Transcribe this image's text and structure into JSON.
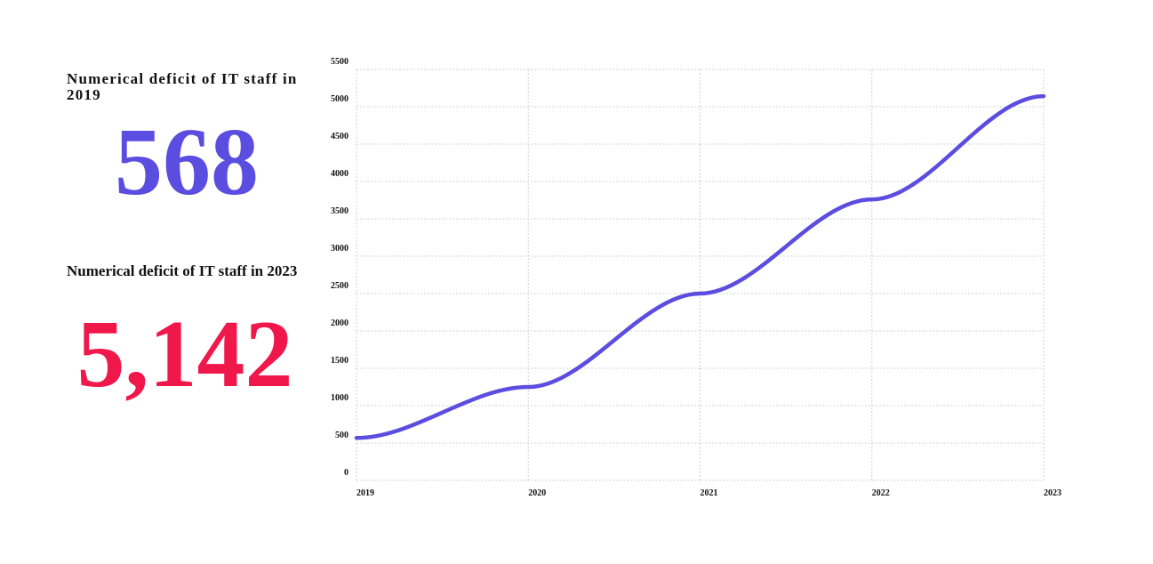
{
  "stats": [
    {
      "label": "Numerical deficit of IT staff in 2019",
      "value": "568"
    },
    {
      "label": "Numerical deficit of IT staff in 2023",
      "value": "5,142"
    }
  ],
  "chart_data": {
    "type": "line",
    "x": [
      2019,
      2020,
      2021,
      2022,
      2023
    ],
    "series": [
      {
        "color": "#5b4de0",
        "values": [
          568,
          1250,
          2500,
          3760,
          5142
        ]
      }
    ],
    "xlim": [
      2019,
      2023
    ],
    "xticks": [
      2019,
      2020,
      2021,
      2022,
      2023
    ],
    "ylim": [
      0,
      5500
    ],
    "yticks": [
      0,
      500,
      1000,
      1500,
      2000,
      2500,
      3000,
      3500,
      4000,
      4500,
      5000,
      5500
    ],
    "grid": true
  }
}
